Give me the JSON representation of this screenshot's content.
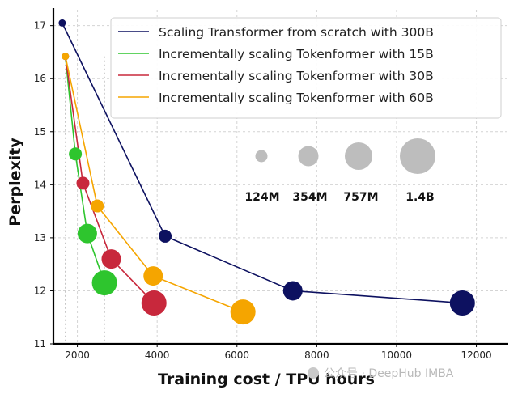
{
  "chart_data": {
    "type": "scatter",
    "xlabel": "Training cost / TPU hours",
    "ylabel": "Perplexity",
    "xlim": [
      1400,
      12800
    ],
    "ylim": [
      11,
      17.3
    ],
    "xticks": [
      2000,
      4000,
      6000,
      8000,
      10000,
      12000
    ],
    "yticks": [
      11,
      12,
      13,
      14,
      15,
      16,
      17
    ],
    "grid": true,
    "legend": "top-right",
    "series": [
      {
        "name": "Scaling Transformer from scratch with 300B",
        "color": "#0d1160",
        "points": [
          {
            "x": 1620,
            "y": 17.05,
            "model": "124M"
          },
          {
            "x": 4200,
            "y": 13.03,
            "model": "354M"
          },
          {
            "x": 7400,
            "y": 12.0,
            "model": "757M"
          },
          {
            "x": 11650,
            "y": 11.77,
            "model": "1.4B"
          }
        ]
      },
      {
        "name": "Incrementally scaling Tokenformer with 15B",
        "color": "#2ec52e",
        "points": [
          {
            "x": 1700,
            "y": 16.42,
            "model": "124M"
          },
          {
            "x": 1950,
            "y": 14.58,
            "model": "354M"
          },
          {
            "x": 2250,
            "y": 13.08,
            "model": "757M"
          },
          {
            "x": 2680,
            "y": 12.15,
            "model": "1.4B"
          }
        ]
      },
      {
        "name": "Incrementally scaling Tokenformer with 30B",
        "color": "#c8283c",
        "points": [
          {
            "x": 1700,
            "y": 16.42,
            "model": "124M"
          },
          {
            "x": 2140,
            "y": 14.03,
            "model": "354M"
          },
          {
            "x": 2850,
            "y": 12.6,
            "model": "757M"
          },
          {
            "x": 3920,
            "y": 11.77,
            "model": "1.4B"
          }
        ]
      },
      {
        "name": "Incrementally scaling Tokenformer with 60B",
        "color": "#f5a500",
        "points": [
          {
            "x": 1700,
            "y": 16.42,
            "model": "124M"
          },
          {
            "x": 2500,
            "y": 13.6,
            "model": "354M"
          },
          {
            "x": 3900,
            "y": 12.28,
            "model": "757M"
          },
          {
            "x": 6150,
            "y": 11.6,
            "model": "1.4B"
          }
        ]
      }
    ],
    "size_legend": [
      {
        "label": "124M",
        "model": "124M"
      },
      {
        "label": "354M",
        "model": "354M"
      },
      {
        "label": "757M",
        "model": "757M"
      },
      {
        "label": "1.4B",
        "model": "1.4B"
      }
    ],
    "size_legend_color": "#bdbdbd"
  },
  "watermark": "公众号 · DeepHub IMBA"
}
